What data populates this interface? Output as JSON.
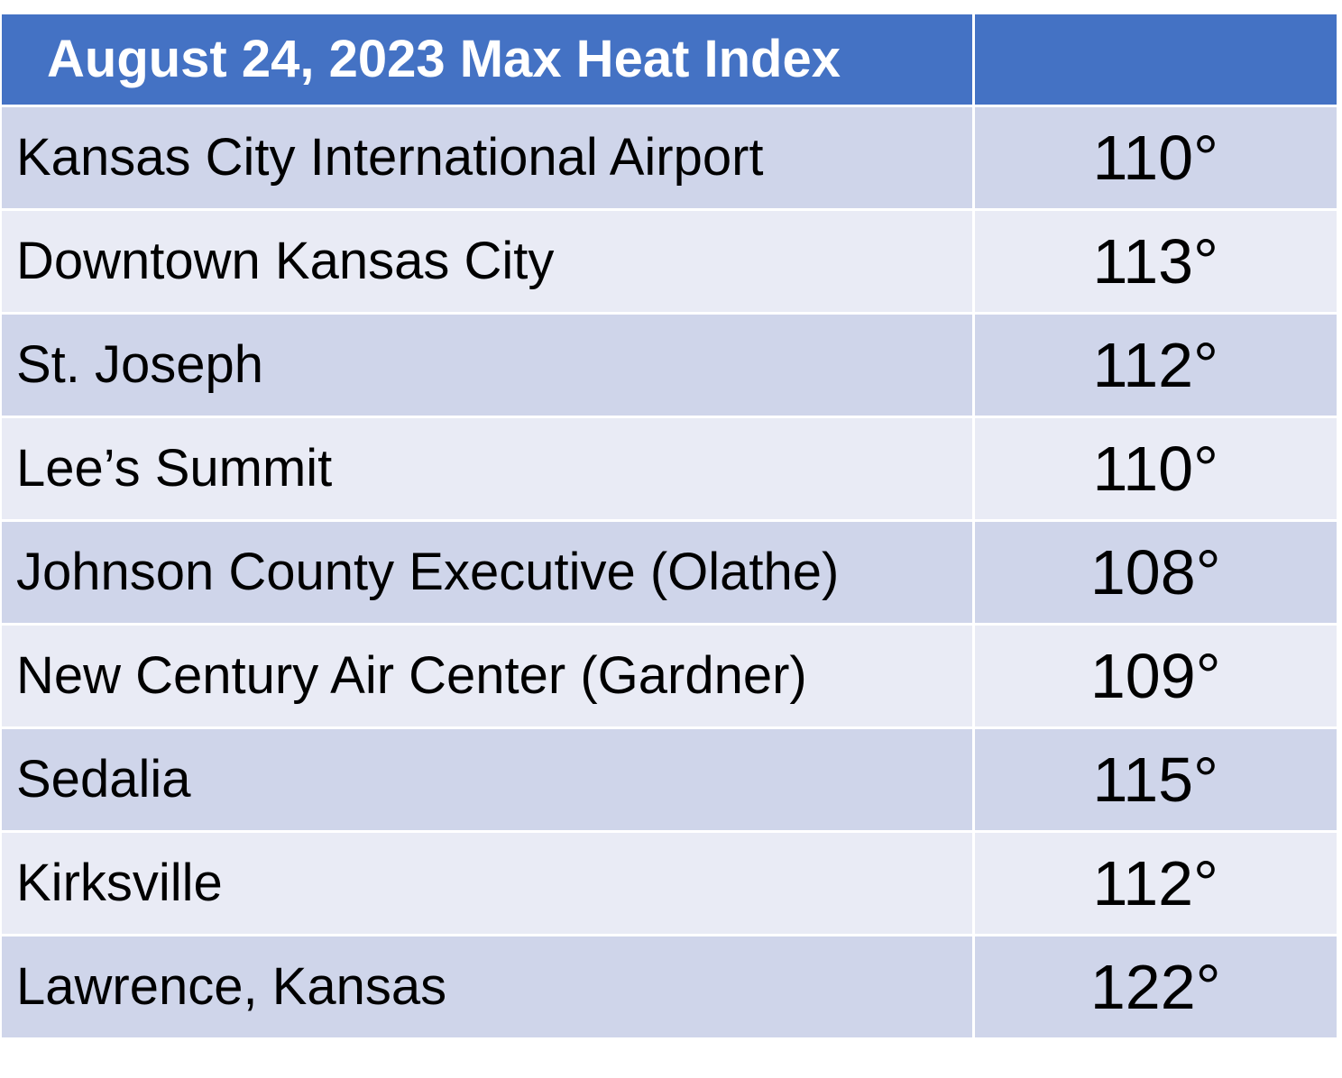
{
  "table": {
    "title": "August 24, 2023 Max Heat Index",
    "rows": [
      {
        "location": "Kansas City International Airport",
        "value": "110°"
      },
      {
        "location": "Downtown Kansas City",
        "value": "113°"
      },
      {
        "location": "St. Joseph",
        "value": "112°"
      },
      {
        "location": "Lee’s Summit",
        "value": "110°"
      },
      {
        "location": "Johnson County Executive (Olathe)",
        "value": "108°"
      },
      {
        "location": "New Century Air Center (Gardner)",
        "value": "109°"
      },
      {
        "location": "Sedalia",
        "value": "115°"
      },
      {
        "location": "Kirksville",
        "value": "112°"
      },
      {
        "location": "Lawrence, Kansas",
        "value": "122°"
      }
    ]
  },
  "colors": {
    "header": "#4472c4",
    "row_dark": "#cfd5ea",
    "row_light": "#e9ebf5"
  }
}
